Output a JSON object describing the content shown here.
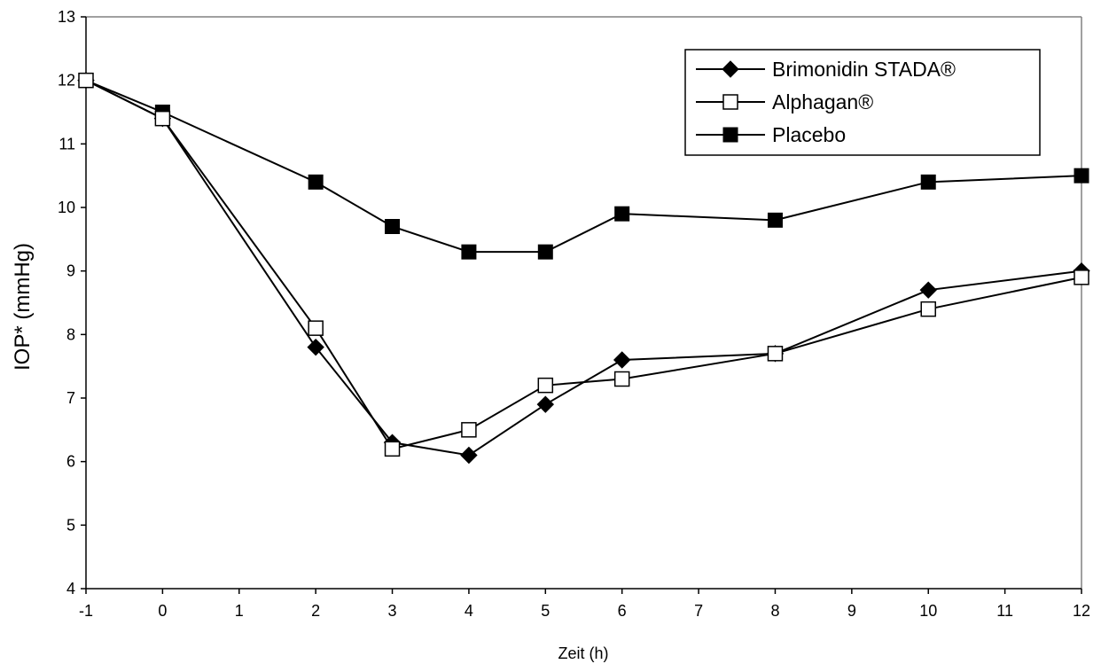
{
  "chart_data": {
    "type": "line",
    "xlabel": "Zeit (h)",
    "ylabel": "IOP* (mmHg)",
    "xlim": [
      -1,
      12
    ],
    "ylim": [
      4,
      13
    ],
    "x_ticks": [
      -1,
      0,
      1,
      2,
      3,
      4,
      5,
      6,
      7,
      8,
      9,
      10,
      11,
      12
    ],
    "y_ticks": [
      4,
      5,
      6,
      7,
      8,
      9,
      10,
      11,
      12,
      13
    ],
    "x_tick_labels": [
      "-1",
      "0",
      "1",
      "2",
      "3",
      "4",
      "5",
      "6",
      "7",
      "8",
      "9",
      "10",
      "11",
      "12"
    ],
    "y_tick_labels": [
      "4",
      "5",
      "6",
      "7",
      "8",
      "9",
      "10",
      "11",
      "12",
      "13"
    ],
    "grid": false,
    "legend_position": "top-right",
    "series": [
      {
        "name": "Brimonidin STADA®",
        "marker": "filled-diamond",
        "color": "#000000",
        "x": [
          -1,
          0,
          2,
          3,
          4,
          5,
          6,
          8,
          10,
          12
        ],
        "y": [
          12.0,
          11.4,
          7.8,
          6.3,
          6.1,
          6.9,
          7.6,
          7.7,
          8.7,
          9.0
        ]
      },
      {
        "name": "Alphagan®",
        "marker": "open-square",
        "color": "#000000",
        "x": [
          -1,
          0,
          2,
          3,
          4,
          5,
          6,
          8,
          10,
          12
        ],
        "y": [
          12.0,
          11.4,
          8.1,
          6.2,
          6.5,
          7.2,
          7.3,
          7.7,
          8.4,
          8.9
        ]
      },
      {
        "name": "Placebo",
        "marker": "filled-square",
        "color": "#000000",
        "x": [
          -1,
          0,
          2,
          3,
          4,
          5,
          6,
          8,
          10,
          12
        ],
        "y": [
          12.0,
          11.5,
          10.4,
          9.7,
          9.3,
          9.3,
          9.9,
          9.8,
          10.4,
          10.5
        ]
      }
    ]
  }
}
